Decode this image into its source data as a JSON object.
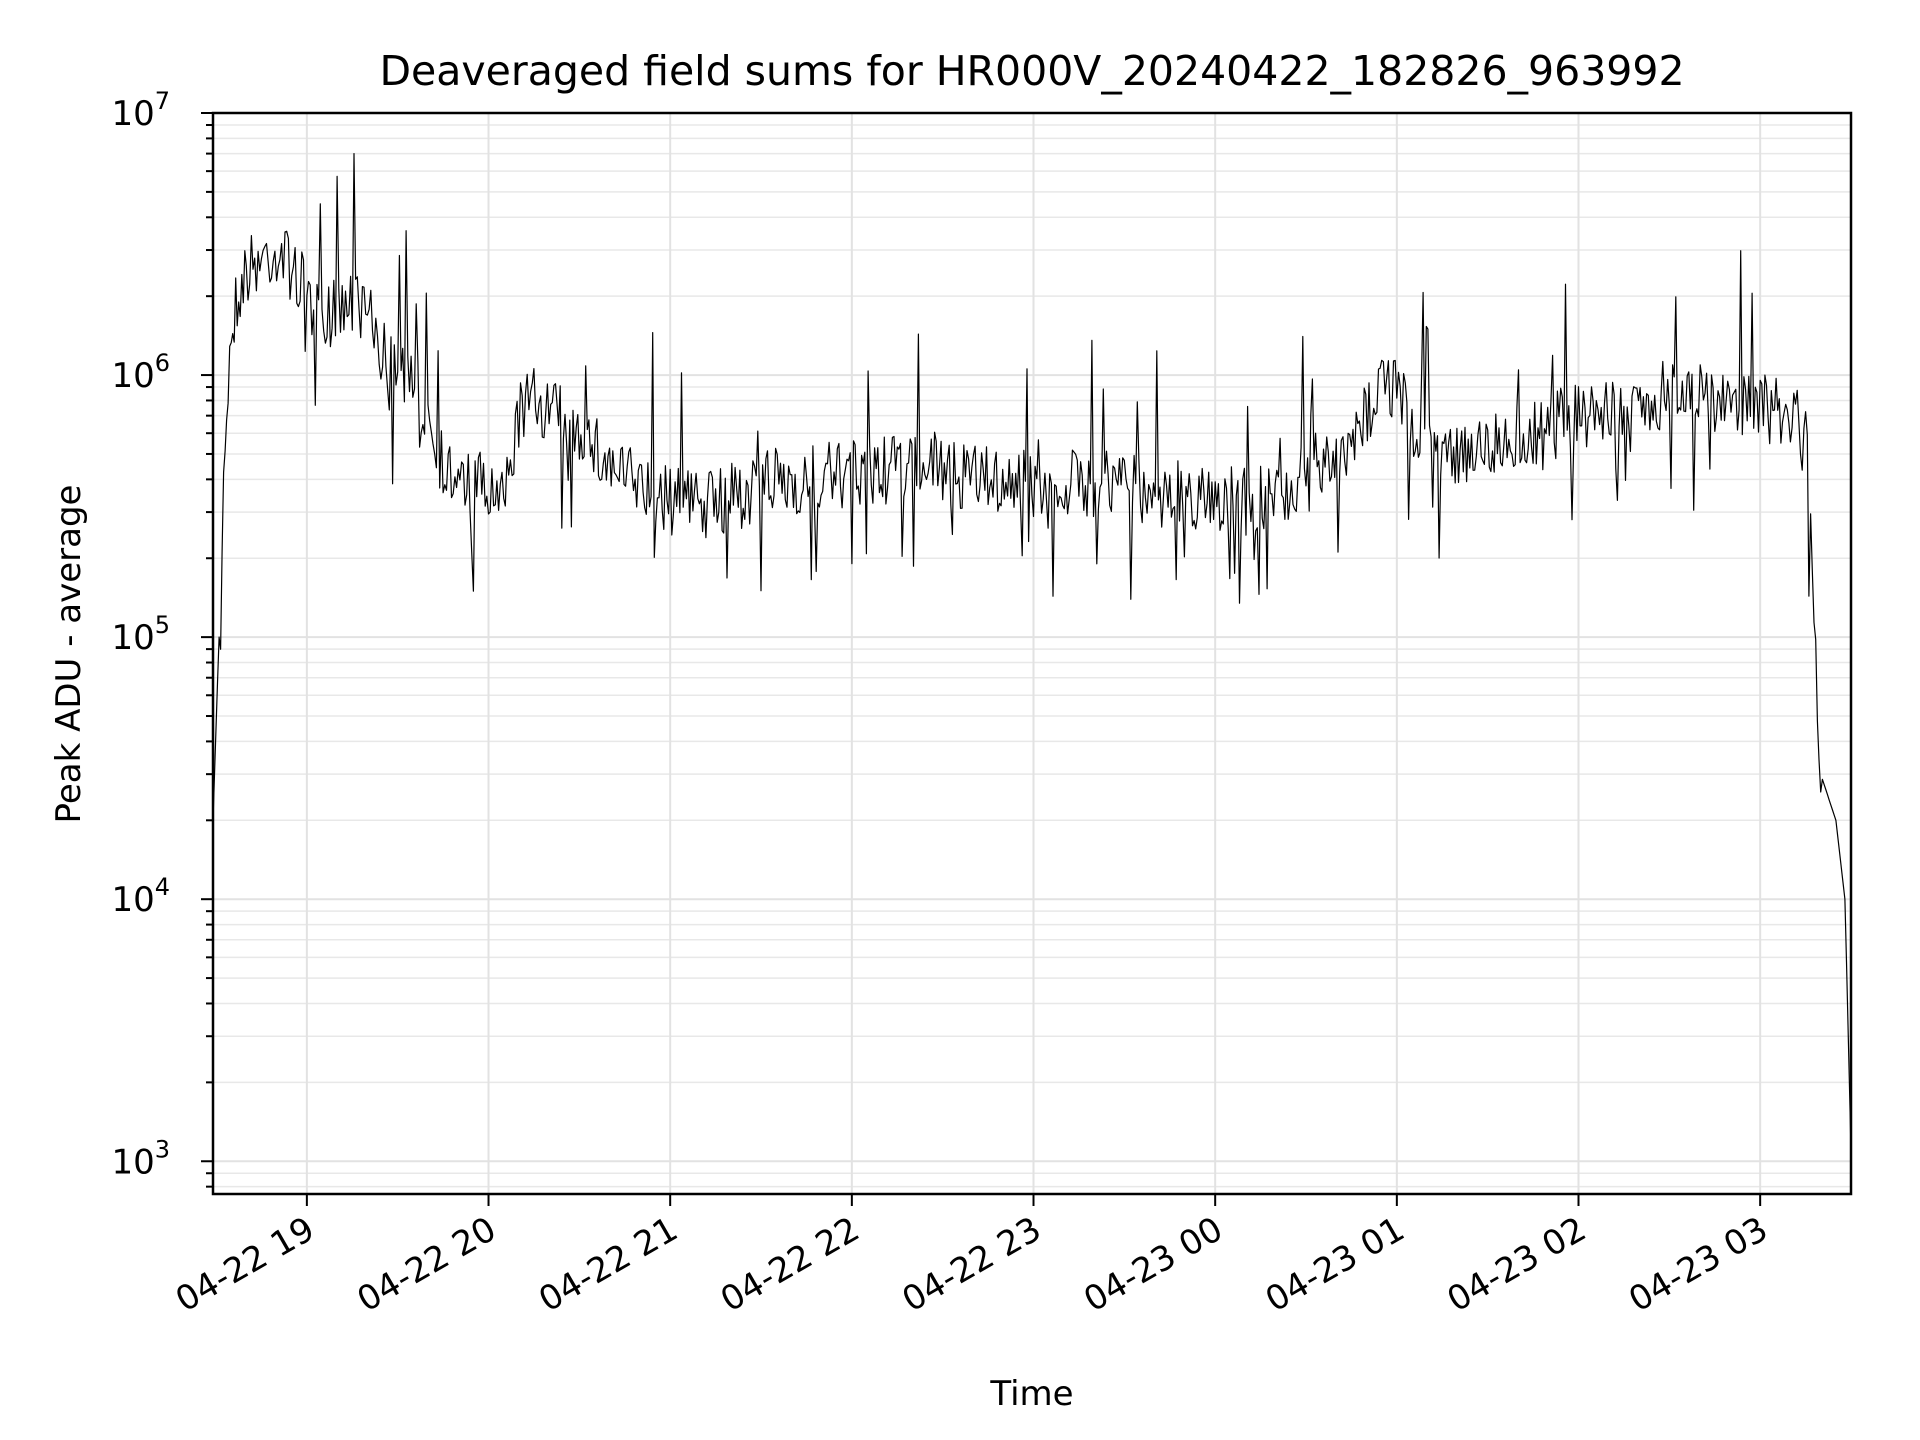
{
  "chart_data": {
    "type": "line",
    "title": "Deaveraged field sums for HR000V_20240422_182826_963992",
    "xlabel": "Time",
    "ylabel": "Peak ADU - average",
    "yscale": "log",
    "ylim": [
      750,
      10000000
    ],
    "xlim": [
      "2024-04-22 18:29",
      "2024-04-23 03:30"
    ],
    "grid": true,
    "x_ticks": [
      "04-22 19",
      "04-22 20",
      "04-22 21",
      "04-22 22",
      "04-22 23",
      "04-23 00",
      "04-23 01",
      "04-23 02",
      "04-23 03"
    ],
    "x_tick_times": [
      "2024-04-22 19:00",
      "2024-04-22 20:00",
      "2024-04-22 21:00",
      "2024-04-22 22:00",
      "2024-04-22 23:00",
      "2024-04-23 00:00",
      "2024-04-23 01:00",
      "2024-04-23 02:00",
      "2024-04-23 03:00"
    ],
    "y_ticks": [
      {
        "base": "10",
        "exp": "3",
        "value": 1000
      },
      {
        "base": "10",
        "exp": "4",
        "value": 10000
      },
      {
        "base": "10",
        "exp": "5",
        "value": 100000
      },
      {
        "base": "10",
        "exp": "6",
        "value": 1000000
      },
      {
        "base": "10",
        "exp": "7",
        "value": 10000000
      }
    ],
    "series": [
      {
        "color": "#000000",
        "x": [
          "2024-04-22 18:29",
          "2024-04-22 18:31",
          "2024-04-22 18:33",
          "2024-04-22 18:35",
          "2024-04-22 18:37",
          "2024-04-22 18:40",
          "2024-04-22 18:45",
          "2024-04-22 18:50",
          "2024-04-22 18:55",
          "2024-04-22 19:00",
          "2024-04-22 19:05",
          "2024-04-22 19:10",
          "2024-04-22 19:15",
          "2024-04-22 19:20",
          "2024-04-22 19:25",
          "2024-04-22 19:30",
          "2024-04-22 19:35",
          "2024-04-22 19:40",
          "2024-04-22 19:45",
          "2024-04-22 19:50",
          "2024-04-22 19:55",
          "2024-04-22 20:00",
          "2024-04-22 20:05",
          "2024-04-22 20:10",
          "2024-04-22 20:15",
          "2024-04-22 20:20",
          "2024-04-22 20:30",
          "2024-04-22 20:40",
          "2024-04-22 20:50",
          "2024-04-22 21:00",
          "2024-04-22 21:15",
          "2024-04-22 21:30",
          "2024-04-22 21:45",
          "2024-04-22 22:00",
          "2024-04-22 22:15",
          "2024-04-22 22:30",
          "2024-04-22 22:45",
          "2024-04-22 23:00",
          "2024-04-22 23:15",
          "2024-04-22 23:30",
          "2024-04-22 23:45",
          "2024-04-23 00:00",
          "2024-04-23 00:15",
          "2024-04-23 00:30",
          "2024-04-23 00:40",
          "2024-04-23 00:45",
          "2024-04-23 00:55",
          "2024-04-23 01:00",
          "2024-04-23 01:05",
          "2024-04-23 01:15",
          "2024-04-23 01:30",
          "2024-04-23 01:45",
          "2024-04-23 02:00",
          "2024-04-23 02:15",
          "2024-04-23 02:30",
          "2024-04-23 02:45",
          "2024-04-23 03:00",
          "2024-04-23 03:10",
          "2024-04-23 03:15",
          "2024-04-23 03:20",
          "2024-04-23 03:25",
          "2024-04-23 03:28",
          "2024-04-23 03:30"
        ],
        "values": [
          20000,
          100000,
          600000,
          1500000,
          2000000,
          2500000,
          2800000,
          3000000,
          2600000,
          2000000,
          1500000,
          1800000,
          2000000,
          1700000,
          1200000,
          1000000,
          900000,
          700000,
          450000,
          380000,
          400000,
          350000,
          320000,
          700000,
          800000,
          750000,
          600000,
          450000,
          380000,
          330000,
          320000,
          380000,
          400000,
          420000,
          430000,
          420000,
          400000,
          380000,
          390000,
          380000,
          350000,
          340000,
          330000,
          400000,
          450000,
          500000,
          1000000,
          900000,
          600000,
          500000,
          550000,
          600000,
          700000,
          750000,
          850000,
          800000,
          750000,
          700000,
          650000,
          30000,
          20000,
          10000,
          1100
        ]
      }
    ]
  }
}
